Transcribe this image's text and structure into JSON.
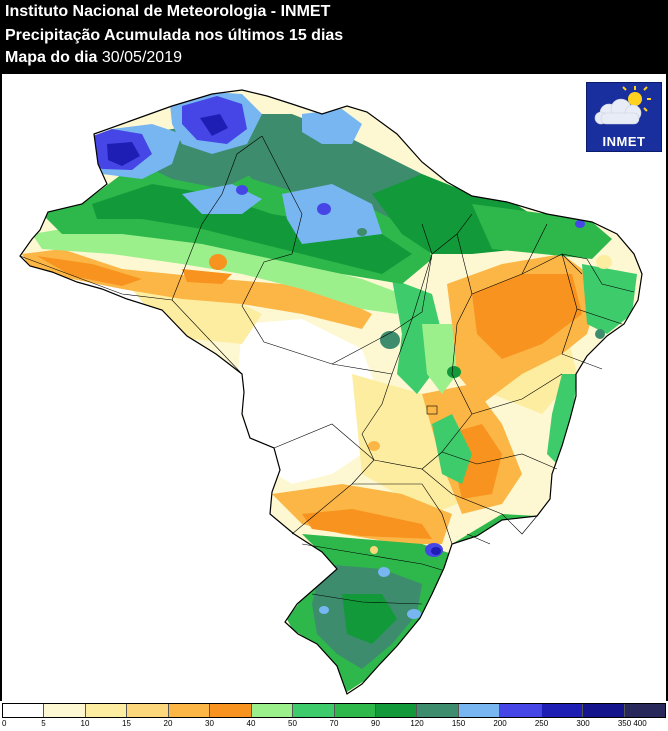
{
  "header": {
    "line1": "Instituto Nacional de Meteorologia - INMET",
    "line2": "Precipitação Acumulada nos últimos 15 dias",
    "line3_label": "Mapa do dia",
    "line3_date": "30/05/2019"
  },
  "logo": {
    "text": "INMET",
    "icon": "sun-cloud-icon",
    "color": "#1a2f9e"
  },
  "legend": {
    "labels": [
      "0",
      "5",
      "10",
      "15",
      "20",
      "30",
      "40",
      "50",
      "70",
      "90",
      "120",
      "150",
      "200",
      "250",
      "300",
      "350",
      "400"
    ],
    "colors": [
      "#ffffff",
      "#fdf8d2",
      "#fdeda0",
      "#fcd77c",
      "#fcb646",
      "#f7931e",
      "#9bf08c",
      "#3ecb6b",
      "#2eb84b",
      "#129a3a",
      "#3d8c6e",
      "#78b6f2",
      "#4646e6",
      "#1e1eb4",
      "#14148c",
      "#28285a"
    ]
  }
}
